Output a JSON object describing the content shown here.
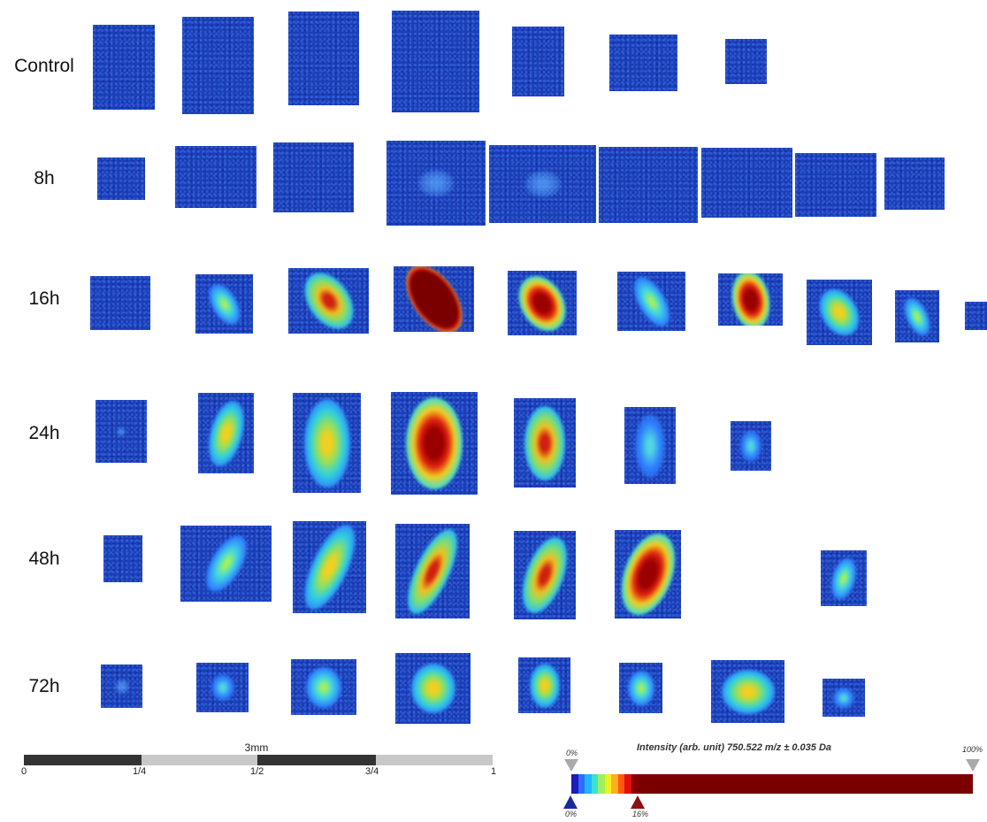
{
  "row_labels": [
    "Control",
    "8h",
    "16h",
    "24h",
    "48h",
    "72h"
  ],
  "scale_bar": {
    "title": "3mm",
    "ticks": [
      "0",
      "1/4",
      "1/2",
      "3/4",
      "1"
    ]
  },
  "colorbar": {
    "title": "Intensity (arb. unit) 750.522 m/z ± 0.035  Da",
    "top_left_label": "0%",
    "top_right_label": "100%",
    "bottom_min_label": "0%",
    "bottom_max_label": "16%",
    "colors": [
      "#1c1cb8",
      "#2f6bff",
      "#1fb7ff",
      "#3fe0d0",
      "#9cf060",
      "#f0f020",
      "#ffb020",
      "#ff5a10",
      "#e01010",
      "#8a0000"
    ],
    "max_color": "#7a0000"
  }
}
